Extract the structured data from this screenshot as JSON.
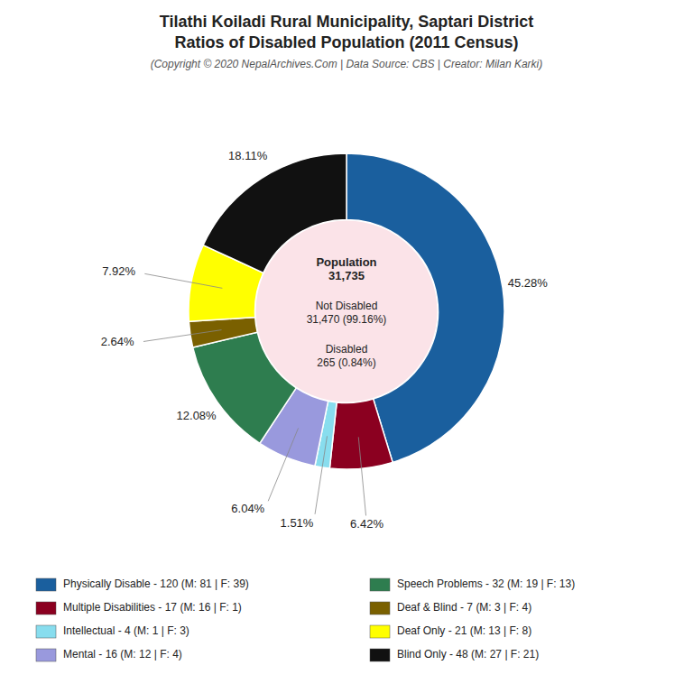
{
  "chart_data": {
    "type": "donut",
    "title": "Tilathi Koiladi Rural Municipality, Saptari District\nRatios of Disabled Population (2011 Census)",
    "subtitle": "(Copyright © 2020 NepalArchives.Com | Data Source: CBS | Creator: Milan Karki)",
    "annotations": [
      "Population\n31,735",
      "Not Disabled\n31,470 (99.16%)",
      "Disabled\n265 (0.84%)"
    ],
    "categories": [
      "Physically Disable - 120 (M: 81 | F: 39)",
      "Multiple Disabilities - 17 (M: 16 | F: 1)",
      "Intellectual - 4 (M: 1 | F: 3)",
      "Mental - 16 (M: 12 | F: 4)",
      "Speech Problems - 32 (M: 19 | F: 13)",
      "Deaf & Blind - 7 (M: 3 | F: 4)",
      "Deaf Only - 21 (M: 13 | F: 8)",
      "Blind Only - 48 (M: 27 | F: 21)"
    ],
    "values": [
      45.28,
      6.42,
      1.51,
      6.04,
      12.08,
      2.64,
      7.92,
      18.11
    ],
    "value_labels": [
      "45.28%",
      "6.42%",
      "1.51%",
      "6.04%",
      "12.08%",
      "2.64%",
      "7.92%",
      "18.11%"
    ],
    "colors": [
      "#1a5f9e",
      "#8b0020",
      "#88ddee",
      "#9999dd",
      "#2e7d4f",
      "#7a6000",
      "#ffff00",
      "#111111"
    ],
    "data_labels": true,
    "legend": "bottom"
  }
}
